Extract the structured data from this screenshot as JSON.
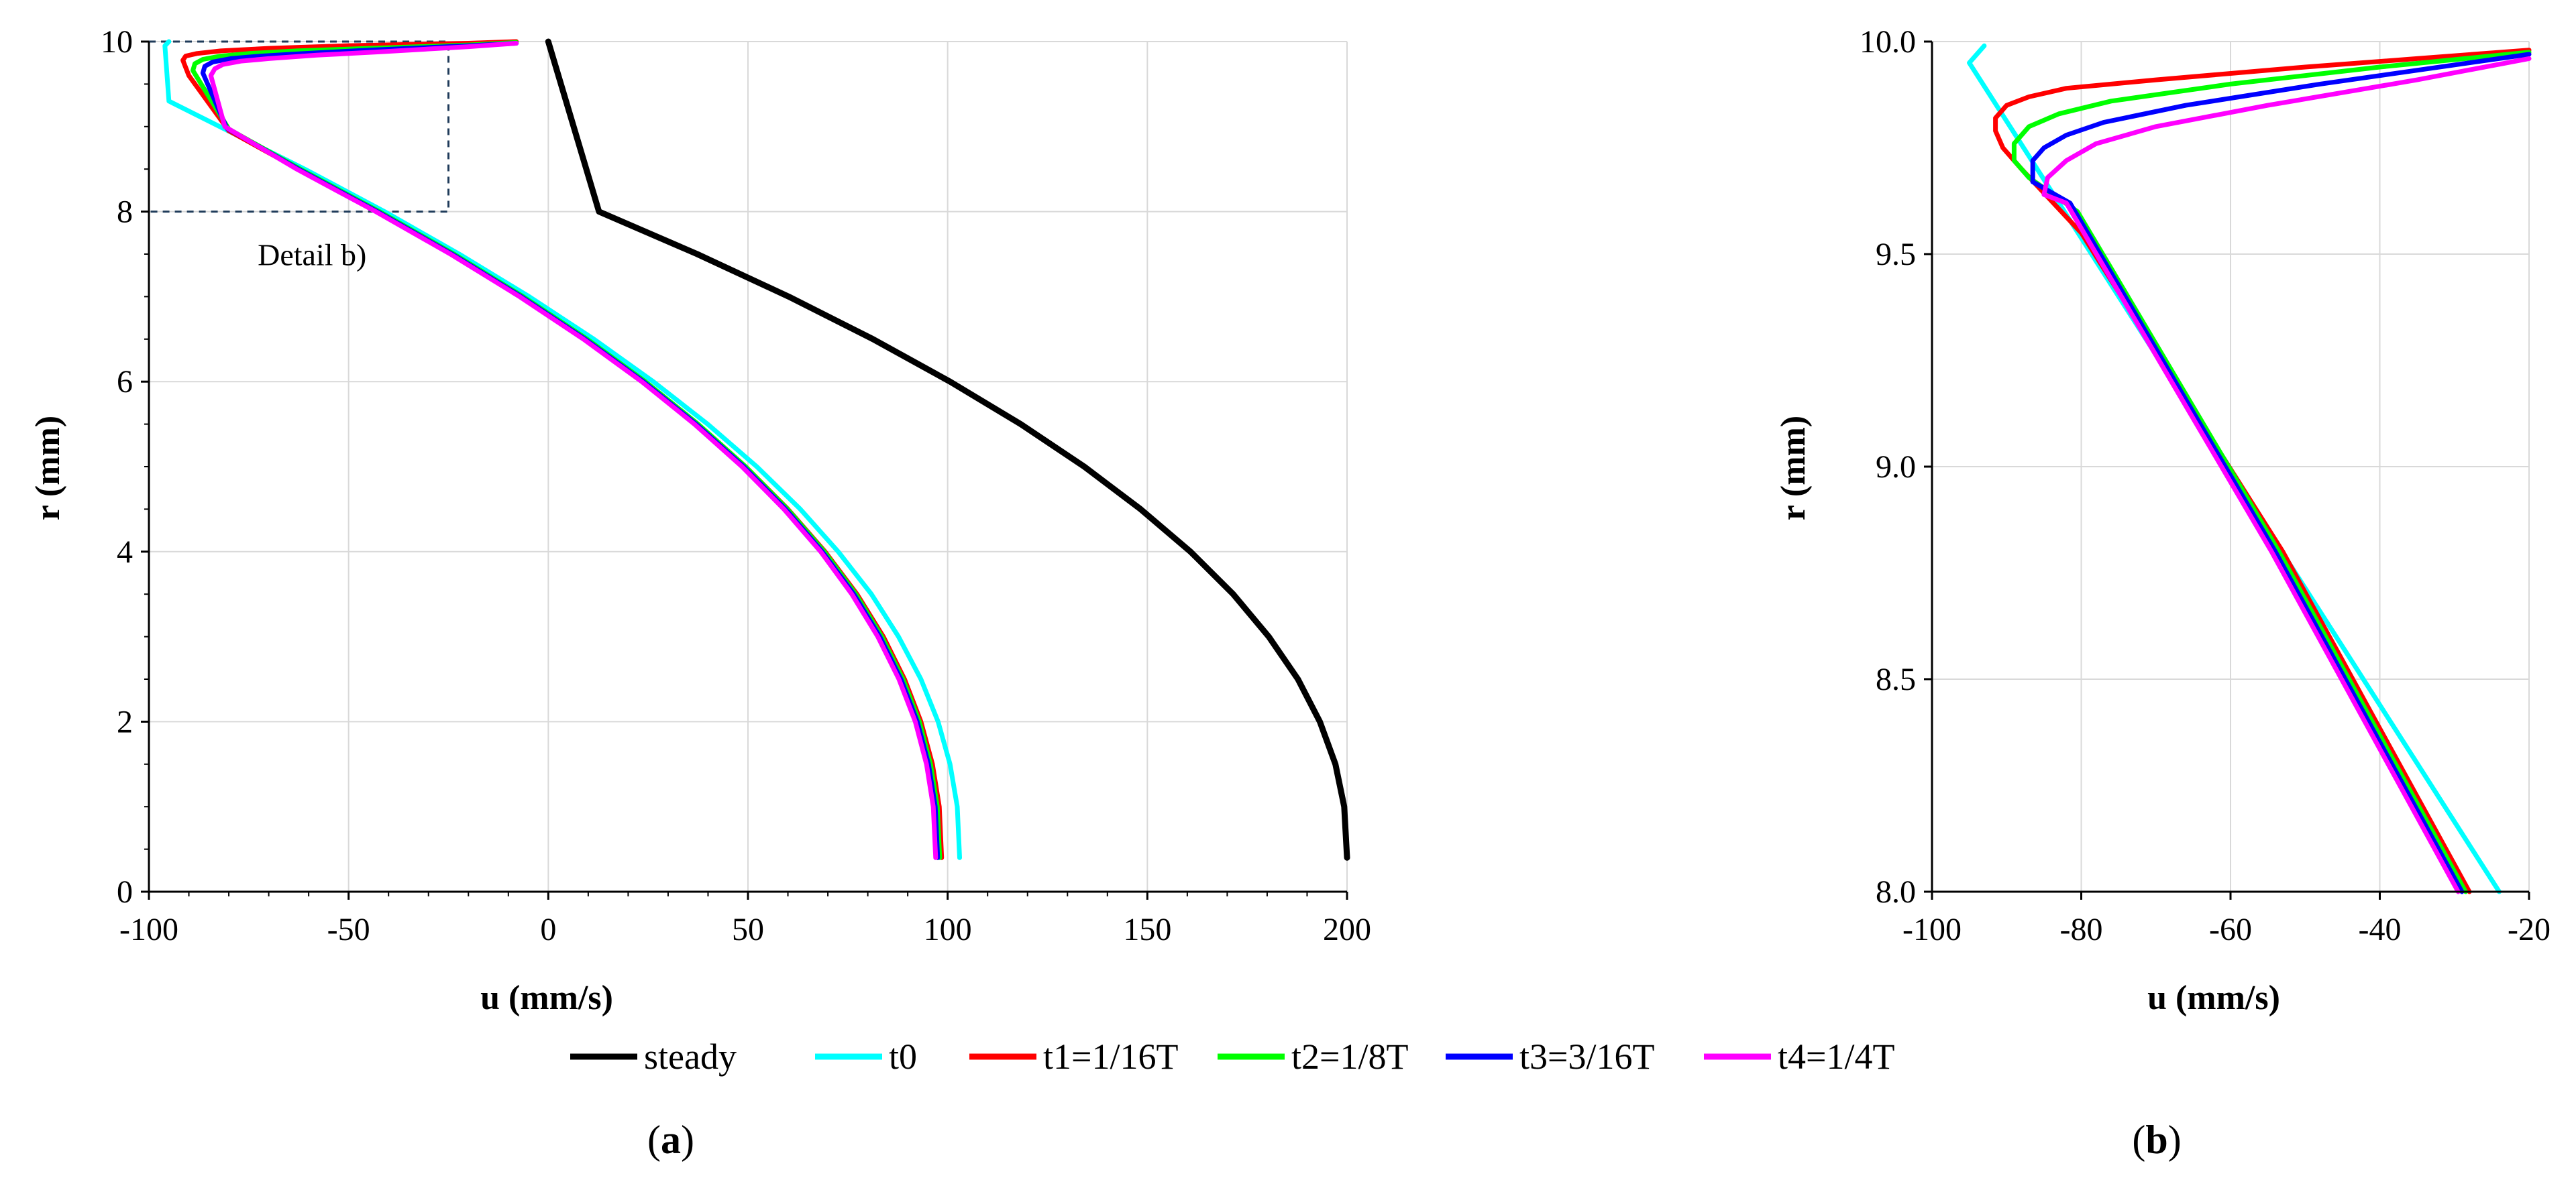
{
  "figure": {
    "legend": [
      "steady",
      "t0",
      "t1=1/16T",
      "t2=1/8T",
      "t3=3/16T",
      "t4=1/4T"
    ],
    "panel_a_prefix": "(",
    "panel_a_letter": "a",
    "panel_a_suffix": ")",
    "panel_b_prefix": "(",
    "panel_b_letter": "b",
    "panel_b_suffix": ")"
  },
  "chart_data": [
    {
      "panel": "a",
      "type": "line",
      "xlabel": "u (mm/s)",
      "ylabel": "r (mm)",
      "xlim": [
        -100,
        200
      ],
      "ylim": [
        0,
        10
      ],
      "xticks": [
        "-100",
        "-50",
        "0",
        "50",
        "100",
        "150",
        "200"
      ],
      "yticks": [
        "0",
        "2",
        "4",
        "6",
        "8",
        "10"
      ],
      "grid": true,
      "annotation": {
        "text": "Detail b)",
        "box": {
          "x": [
            -100,
            -25
          ],
          "y": [
            8,
            10
          ]
        }
      },
      "series": [
        {
          "name": "steady",
          "color": "#000000",
          "x": [
            200,
            199.3,
            197.1,
            193.2,
            187.7,
            180.4,
            171.5,
            160.8,
            148.3,
            134.2,
            118.3,
            100.6,
            81.3,
            60.2,
            37.3,
            12.7,
            0
          ],
          "y": [
            0.4,
            1.0,
            1.5,
            2.0,
            2.5,
            3.0,
            3.5,
            4.0,
            4.5,
            5.0,
            5.5,
            6.0,
            6.5,
            7.0,
            7.5,
            8.0,
            10.0
          ]
        },
        {
          "name": "t0",
          "color": "#00ffff",
          "x": [
            103,
            102.4,
            100.6,
            97.6,
            93.3,
            87.7,
            80.9,
            72.6,
            63.1,
            52.2,
            39.9,
            26.3,
            11.4,
            -4.8,
            -22.3,
            -41.0,
            -61.0,
            -82.3,
            -95.0,
            -96.0,
            -95.0
          ],
          "y": [
            0.4,
            1.0,
            1.5,
            2.0,
            2.5,
            3.0,
            3.5,
            4.0,
            4.5,
            5.0,
            5.5,
            6.0,
            6.5,
            7.0,
            7.5,
            8.0,
            8.5,
            9.0,
            9.3,
            9.95,
            10.0
          ]
        },
        {
          "name": "t1=1/16T",
          "color": "#ff0000",
          "x": [
            98.5,
            97.9,
            96.2,
            93.3,
            89.2,
            83.9,
            77.3,
            69.3,
            60.0,
            49.4,
            37.4,
            24.1,
            9.4,
            -6.7,
            -24.0,
            -42.7,
            -62.6,
            -80.0,
            -90.0,
            -91.5,
            -90.8,
            -88.0,
            -82.0,
            -70.0,
            -51.0,
            -20.0,
            -8.0
          ],
          "y": [
            0.4,
            1.0,
            1.5,
            2.0,
            2.5,
            3.0,
            3.5,
            4.0,
            4.5,
            5.0,
            5.5,
            6.0,
            6.5,
            7.0,
            7.5,
            8.0,
            8.5,
            8.95,
            9.6,
            9.78,
            9.83,
            9.86,
            9.89,
            9.92,
            9.95,
            9.98,
            10.0
          ]
        },
        {
          "name": "t2=1/8T",
          "color": "#00ff00",
          "x": [
            98.0,
            97.4,
            95.7,
            92.9,
            88.8,
            83.5,
            77.0,
            69.1,
            59.9,
            49.4,
            37.5,
            24.3,
            9.7,
            -6.3,
            -23.6,
            -42.3,
            -62.1,
            -80.0,
            -89.0,
            -88.5,
            -86.5,
            -82.0,
            -75.0,
            -63.0,
            -45.0,
            -20.0,
            -8.0
          ],
          "y": [
            0.4,
            1.0,
            1.5,
            2.0,
            2.5,
            3.0,
            3.5,
            4.0,
            4.5,
            5.0,
            5.5,
            6.0,
            6.5,
            7.0,
            7.5,
            8.0,
            8.5,
            8.97,
            9.66,
            9.74,
            9.79,
            9.83,
            9.86,
            9.89,
            9.92,
            9.96,
            9.99
          ]
        },
        {
          "name": "t3=3/16T",
          "color": "#0000ff",
          "x": [
            97.5,
            96.9,
            95.2,
            92.4,
            88.3,
            83.0,
            76.5,
            68.6,
            59.4,
            48.9,
            37.0,
            23.8,
            9.2,
            -6.8,
            -24.1,
            -42.8,
            -62.6,
            -80.5,
            -86.5,
            -86.0,
            -84.0,
            -79.5,
            -72.0,
            -61.0,
            -45.0,
            -20.0,
            -8.0
          ],
          "y": [
            0.4,
            1.0,
            1.5,
            2.0,
            2.5,
            3.0,
            3.5,
            4.0,
            4.5,
            5.0,
            5.5,
            6.0,
            6.5,
            7.0,
            7.5,
            8.0,
            8.5,
            8.98,
            9.63,
            9.71,
            9.76,
            9.8,
            9.83,
            9.86,
            9.9,
            9.95,
            9.98
          ]
        },
        {
          "name": "t4=1/4T",
          "color": "#ff00ff",
          "x": [
            97.0,
            96.4,
            94.7,
            91.9,
            87.8,
            82.5,
            76.0,
            68.2,
            59.0,
            48.5,
            36.6,
            23.4,
            8.8,
            -7.2,
            -24.5,
            -43.2,
            -63.0,
            -81.0,
            -84.5,
            -83.5,
            -81.5,
            -77.0,
            -70.0,
            -58.0,
            -42.0,
            -20.0,
            -8.0
          ],
          "y": [
            0.4,
            1.0,
            1.5,
            2.0,
            2.5,
            3.0,
            3.5,
            4.0,
            4.5,
            5.0,
            5.5,
            6.0,
            6.5,
            7.0,
            7.5,
            8.0,
            8.5,
            9.0,
            9.6,
            9.68,
            9.73,
            9.77,
            9.8,
            9.84,
            9.88,
            9.94,
            9.98
          ]
        }
      ]
    },
    {
      "panel": "b",
      "type": "line",
      "xlabel": "u (mm/s)",
      "ylabel": "r (mm)",
      "xlim": [
        -100,
        -20
      ],
      "ylim": [
        8.0,
        10.0
      ],
      "xticks": [
        "-100",
        "-80",
        "-60",
        "-40",
        "-20"
      ],
      "yticks": [
        "8.0",
        "8.5",
        "9.0",
        "9.5",
        "10.0"
      ],
      "grid": true,
      "series": [
        {
          "name": "t0",
          "color": "#00ffff",
          "x": [
            -24.0,
            -95.0,
            -93.0
          ],
          "y": [
            8.0,
            9.95,
            9.99
          ]
        },
        {
          "name": "t1=1/16T",
          "color": "#ff0000",
          "x": [
            -28.0,
            -53.0,
            -80.0,
            -88.0,
            -90.5,
            -91.5,
            -91.5,
            -90.0,
            -87.0,
            -82.0,
            -70.0,
            -50.0,
            -35.0,
            -20.0
          ],
          "y": [
            8.0,
            8.8,
            9.55,
            9.7,
            9.75,
            9.79,
            9.82,
            9.85,
            9.87,
            9.89,
            9.91,
            9.94,
            9.96,
            9.98
          ]
        },
        {
          "name": "t2=1/8T",
          "color": "#00ff00",
          "x": [
            -28.5,
            -53.5,
            -80.5,
            -87.0,
            -89.0,
            -89.0,
            -87.0,
            -83.0,
            -76.0,
            -60.0,
            -40.0,
            -20.0
          ],
          "y": [
            8.0,
            8.8,
            9.6,
            9.68,
            9.72,
            9.76,
            9.8,
            9.83,
            9.86,
            9.9,
            9.94,
            9.975
          ]
        },
        {
          "name": "t3=3/16T",
          "color": "#0000ff",
          "x": [
            -29.0,
            -54.0,
            -81.5,
            -86.5,
            -86.5,
            -85.0,
            -82.0,
            -77.0,
            -66.0,
            -48.0,
            -20.0
          ],
          "y": [
            8.0,
            8.8,
            9.62,
            9.67,
            9.72,
            9.75,
            9.78,
            9.81,
            9.85,
            9.9,
            9.97
          ]
        },
        {
          "name": "t4=1/4T",
          "color": "#ff00ff",
          "x": [
            -29.5,
            -54.5,
            -82.0,
            -85.0,
            -84.5,
            -82.0,
            -78.0,
            -70.0,
            -55.0,
            -35.0,
            -20.0
          ],
          "y": [
            8.0,
            8.8,
            9.62,
            9.64,
            9.68,
            9.72,
            9.76,
            9.8,
            9.85,
            9.91,
            9.96
          ]
        }
      ]
    }
  ]
}
